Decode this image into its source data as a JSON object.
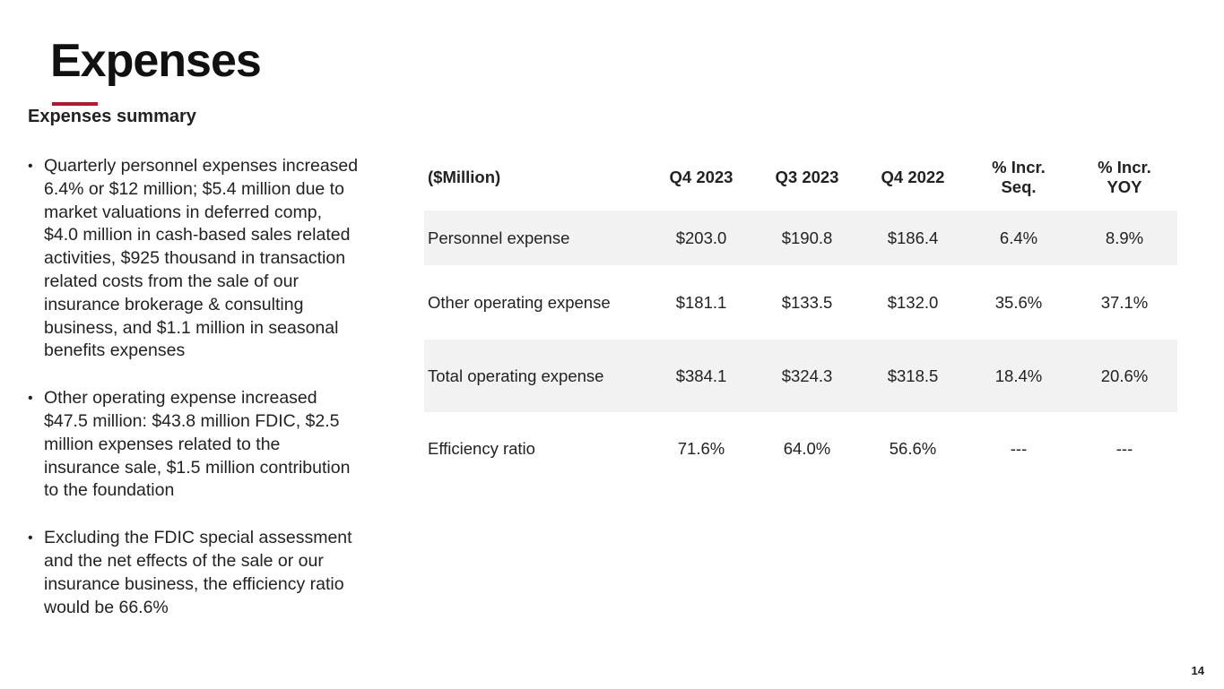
{
  "slide": {
    "title": "Expenses",
    "accent_color": "#b5162b",
    "page_number": "14"
  },
  "summary": {
    "heading": "Expenses summary",
    "bullet_symbol": "•",
    "bullets": [
      "Quarterly personnel expenses increased 6.4% or $12 million; $5.4 million due to market valuations in deferred comp, $4.0 million in cash-based sales related activities, $925 thousand in transaction related costs from the sale of our insurance brokerage & consulting business, and $1.1 million in seasonal benefits expenses",
      "Other operating expense increased $47.5 million: $43.8 million FDIC, $2.5 million expenses related to the insurance sale, $1.5 million contribution to the foundation",
      "Excluding the FDIC special assessment and the net effects of the sale or our insurance business, the efficiency ratio would be 66.6%"
    ]
  },
  "table": {
    "headers": {
      "label": "($Million)",
      "q4_2023": "Q4 2023",
      "q3_2023": "Q3 2023",
      "q4_2022": "Q4 2022",
      "pct_seq_line1": "% Incr.",
      "pct_seq_line2": "Seq.",
      "pct_yoy_line1": "% Incr.",
      "pct_yoy_line2": "YOY"
    },
    "row_shading": "#f2f2f2",
    "rows": [
      {
        "label": "Personnel expense",
        "q4_2023": "$203.0",
        "q3_2023": "$190.8",
        "q4_2022": "$186.4",
        "pct_seq": "6.4%",
        "pct_yoy": "8.9%"
      },
      {
        "label": "Other operating expense",
        "q4_2023": "$181.1",
        "q3_2023": "$133.5",
        "q4_2022": "$132.0",
        "pct_seq": "35.6%",
        "pct_yoy": "37.1%"
      },
      {
        "label": "Total operating expense",
        "q4_2023": "$384.1",
        "q3_2023": "$324.3",
        "q4_2022": "$318.5",
        "pct_seq": "18.4%",
        "pct_yoy": "20.6%"
      },
      {
        "label": "Efficiency ratio",
        "q4_2023": "71.6%",
        "q3_2023": "64.0%",
        "q4_2022": "56.6%",
        "pct_seq": "---",
        "pct_yoy": "---"
      }
    ]
  }
}
